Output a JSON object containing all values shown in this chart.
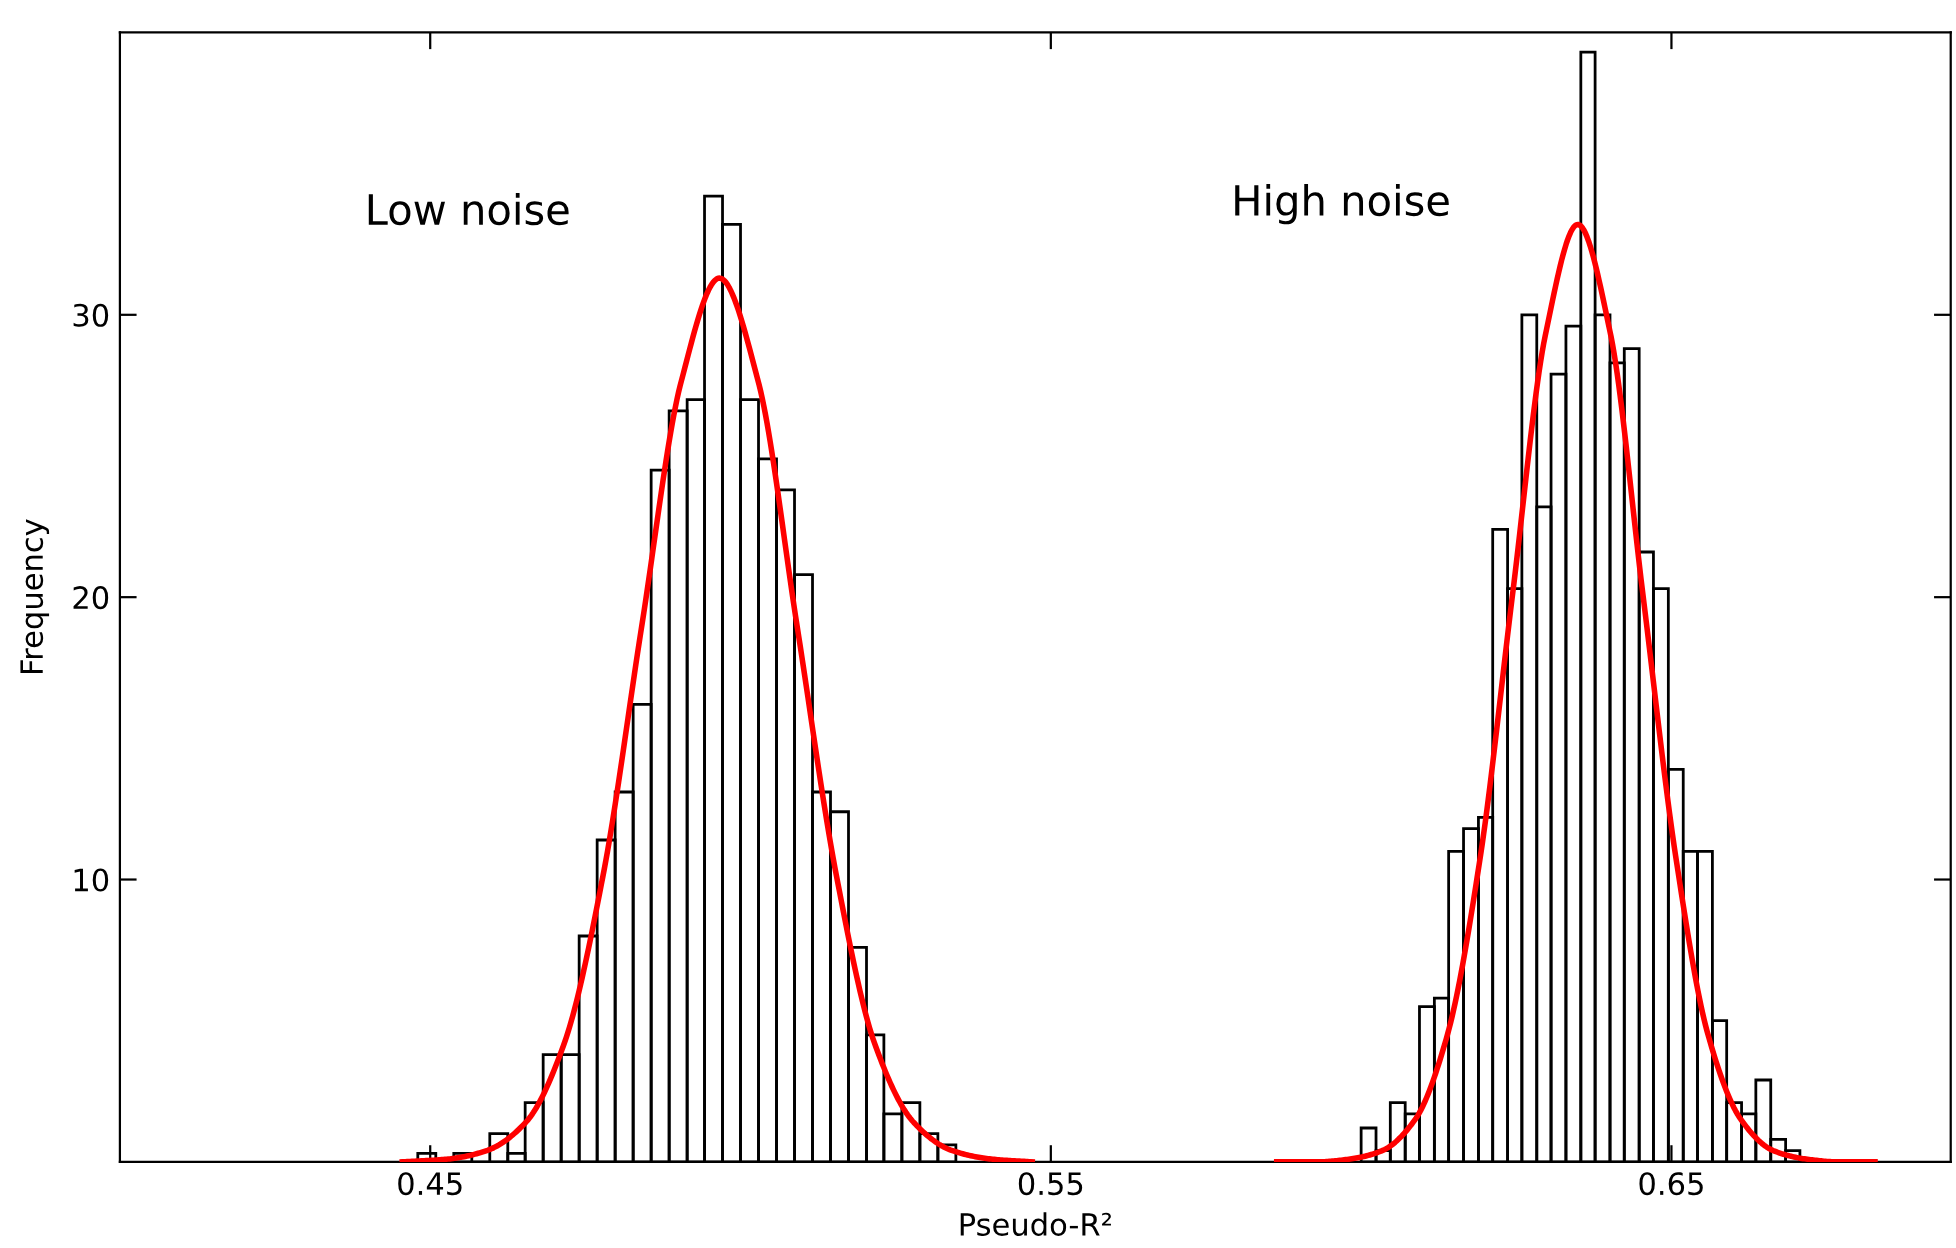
{
  "chart_data": {
    "type": "histogram",
    "xlabel": "Pseudo-R²",
    "ylabel": "Frequency",
    "xlim": [
      0.4,
      0.695
    ],
    "ylim": [
      0,
      40
    ],
    "xticks": [
      0.45,
      0.55,
      0.65
    ],
    "yticks": [
      10,
      20,
      30
    ],
    "grid": false,
    "series": [
      {
        "color": "#000000",
        "bins": [
          0.448,
          0.4509,
          0.4538,
          0.4567,
          0.4596,
          0.4625,
          0.4653,
          0.4682,
          0.4711,
          0.474,
          0.4769,
          0.4798,
          0.4827,
          0.4856,
          0.4885,
          0.4914,
          0.4942,
          0.4971,
          0.5,
          0.5029,
          0.5058,
          0.5087,
          0.5116,
          0.5145,
          0.5174,
          0.5203,
          0.5231,
          0.526,
          0.5289,
          0.5318,
          0.5347
        ],
        "values": [
          0.3,
          0,
          0.3,
          0,
          1.0,
          0.3,
          2.1,
          3.8,
          3.8,
          8.0,
          11.4,
          13.1,
          16.2,
          24.5,
          26.6,
          27.0,
          34.2,
          33.2,
          27.0,
          24.9,
          23.8,
          20.8,
          13.1,
          12.4,
          7.6,
          4.5,
          1.7,
          2.1,
          1.0,
          0.6
        ]
      },
      {
        "color": "#000000",
        "bins": [
          0.6,
          0.6024,
          0.6047,
          0.6071,
          0.6094,
          0.6118,
          0.6141,
          0.6165,
          0.6189,
          0.6212,
          0.6236,
          0.6259,
          0.6283,
          0.6306,
          0.633,
          0.6354,
          0.6377,
          0.6401,
          0.6424,
          0.6448,
          0.6471,
          0.6495,
          0.6519,
          0.6542,
          0.6566,
          0.6589,
          0.6613,
          0.6636,
          0.666,
          0.6684,
          0.6707
        ],
        "values": [
          1.2,
          0.4,
          2.1,
          1.7,
          5.5,
          5.8,
          11.0,
          11.8,
          12.2,
          22.4,
          20.3,
          30.0,
          23.2,
          27.9,
          29.6,
          39.3,
          30.0,
          28.3,
          28.8,
          21.6,
          20.3,
          13.9,
          11.0,
          11.0,
          5.0,
          2.1,
          1.7,
          2.9,
          0.8,
          0.4
        ]
      },
      {
        "type": "line",
        "color": "#ff0000",
        "x": [
          0.4455,
          0.4529,
          0.4591,
          0.4654,
          0.4716,
          0.4779,
          0.4841,
          0.4904,
          0.4966,
          0.5029,
          0.5091,
          0.5154,
          0.5216,
          0.5279,
          0.5341,
          0.5404,
          0.547
        ],
        "values": [
          0.0,
          0.1,
          0.4,
          1.4,
          4.2,
          10.2,
          19.0,
          27.6,
          31.3,
          27.6,
          19.0,
          10.2,
          4.2,
          1.4,
          0.4,
          0.1,
          0.0
        ]
      },
      {
        "type": "line",
        "color": "#ff0000",
        "x": [
          0.5864,
          0.5929,
          0.5982,
          0.6034,
          0.6087,
          0.6139,
          0.6192,
          0.6244,
          0.6297,
          0.6349,
          0.6402,
          0.6454,
          0.6507,
          0.6559,
          0.6612,
          0.6664,
          0.6717,
          0.6769,
          0.6828
        ],
        "values": [
          0.0,
          0.0,
          0.1,
          0.4,
          1.5,
          4.5,
          10.8,
          20.1,
          29.3,
          33.2,
          29.3,
          20.1,
          10.8,
          4.5,
          1.5,
          0.4,
          0.1,
          0.0,
          0.0
        ]
      }
    ],
    "annotations": [
      "Low noise",
      "High noise"
    ]
  }
}
